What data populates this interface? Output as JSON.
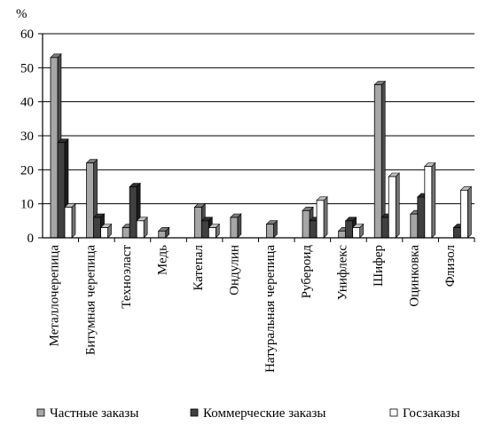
{
  "chart_data": {
    "type": "bar",
    "ylabel": "%",
    "ylim": [
      0,
      60
    ],
    "yticks": [
      0,
      10,
      20,
      30,
      40,
      50,
      60
    ],
    "grid": true,
    "legend_position": "bottom",
    "categories": [
      "Металлочерепица",
      "Битумная черепица",
      "Техноэласт",
      "Медь",
      "Катепал",
      "Ондулин",
      "Натуральная черепица",
      "Рубероид",
      "Унифлекс",
      "Шифер",
      "Оцинковка",
      "Флизол"
    ],
    "series": [
      {
        "name": "Частные заказы",
        "color": "#a6a6a6",
        "values": [
          53,
          22,
          3,
          2,
          9,
          6,
          4,
          8,
          2,
          45,
          7,
          0
        ]
      },
      {
        "name": "Коммерческие заказы",
        "color": "#404040",
        "values": [
          28,
          6,
          15,
          0,
          5,
          0,
          0,
          5,
          5,
          6,
          12,
          3
        ]
      },
      {
        "name": "Госзаказы",
        "color": "#ffffff",
        "values": [
          9,
          3,
          5,
          0,
          3,
          0,
          0,
          11,
          3,
          18,
          21,
          14
        ]
      }
    ]
  }
}
